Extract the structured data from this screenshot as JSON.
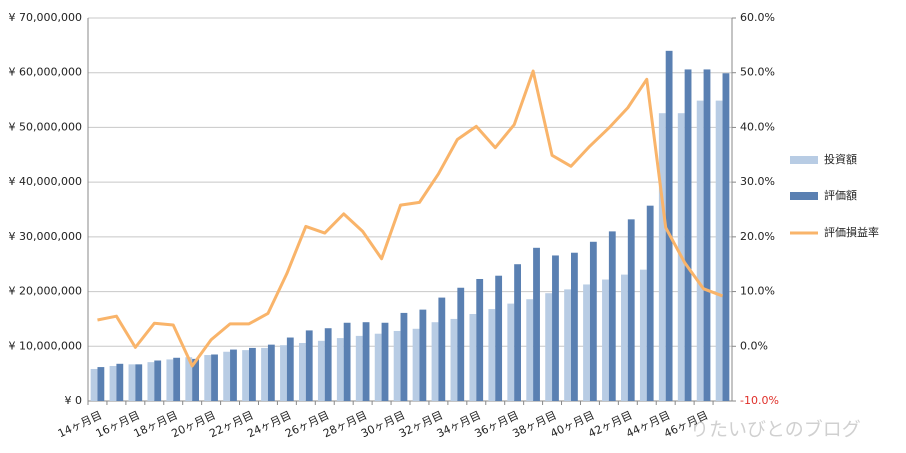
{
  "chart_data": {
    "type": "bar_line",
    "categories": [
      "14ヶ月目",
      null,
      "16ヶ月目",
      null,
      "18ヶ月目",
      null,
      "20ヶ月目",
      null,
      "22ヶ月目",
      null,
      "24ヶ月目",
      null,
      "26ヶ月目",
      null,
      "28ヶ月目",
      null,
      "30ヶ月目",
      null,
      "32ヶ月目",
      null,
      "34ヶ月目",
      null,
      "36ヶ月目",
      null,
      "38ヶ月目",
      null,
      "40ヶ月目",
      null,
      "42ヶ月目",
      null,
      "44ヶ月目",
      null,
      "46ヶ月目",
      null
    ],
    "series": [
      {
        "name": "投資額",
        "type": "bar",
        "color": "#b8cce4",
        "values": [
          5850000,
          6400000,
          6700000,
          7100000,
          7600000,
          8000000,
          8400000,
          9000000,
          9300000,
          9700000,
          10200000,
          10600000,
          11000000,
          11500000,
          11900000,
          12300000,
          12800000,
          13200000,
          14400000,
          15000000,
          15900000,
          16800000,
          17800000,
          18600000,
          19700000,
          20400000,
          21300000,
          22200000,
          23100000,
          24000000,
          52600000,
          52600000,
          54900000,
          54900000
        ]
      },
      {
        "name": "評価額",
        "type": "bar",
        "color": "#5a80b2",
        "values": [
          6200000,
          6800000,
          6700000,
          7400000,
          7900000,
          7700000,
          8500000,
          9400000,
          9700000,
          10300000,
          11600000,
          12900000,
          13300000,
          14300000,
          14400000,
          14300000,
          16100000,
          16700000,
          18900000,
          20700000,
          22300000,
          22900000,
          25000000,
          28000000,
          26600000,
          27100000,
          29100000,
          31000000,
          33200000,
          35700000,
          64000000,
          60600000,
          60600000,
          59900000
        ]
      },
      {
        "name": "評価損益率",
        "type": "line",
        "axis": "y2",
        "color": "#f9b46a",
        "values": [
          4.8,
          5.5,
          -0.2,
          4.2,
          3.9,
          -3.6,
          1.2,
          4.1,
          4.1,
          6.0,
          13.3,
          21.9,
          20.7,
          24.2,
          21.0,
          16.0,
          25.8,
          26.3,
          31.5,
          37.8,
          40.2,
          36.3,
          40.5,
          50.3,
          34.9,
          32.9,
          36.6,
          39.9,
          43.6,
          48.8,
          21.7,
          15.3,
          10.5,
          9.2
        ]
      }
    ],
    "ylim": [
      0,
      70000000
    ],
    "yticks": [
      {
        "value": 0,
        "label": "¥ 0"
      },
      {
        "value": 10000000,
        "label": "¥ 10,000,000"
      },
      {
        "value": 20000000,
        "label": "¥ 20,000,000"
      },
      {
        "value": 30000000,
        "label": "¥ 30,000,000"
      },
      {
        "value": 40000000,
        "label": "¥ 40,000,000"
      },
      {
        "value": 50000000,
        "label": "¥ 50,000,000"
      },
      {
        "value": 60000000,
        "label": "¥ 60,000,000"
      },
      {
        "value": 70000000,
        "label": "¥ 70,000,000"
      }
    ],
    "y2lim": [
      -10,
      60
    ],
    "y2ticks": [
      {
        "value": -10,
        "label": "-10.0%"
      },
      {
        "value": 0,
        "label": "0.0%"
      },
      {
        "value": 10,
        "label": "10.0%"
      },
      {
        "value": 20,
        "label": "20.0%"
      },
      {
        "value": 30,
        "label": "30.0%"
      },
      {
        "value": 40,
        "label": "40.0%"
      },
      {
        "value": 50,
        "label": "50.0%"
      },
      {
        "value": 60,
        "label": "60.0%"
      }
    ],
    "grid": true,
    "legend": "right",
    "watermark": "りたいびとのブログ"
  }
}
